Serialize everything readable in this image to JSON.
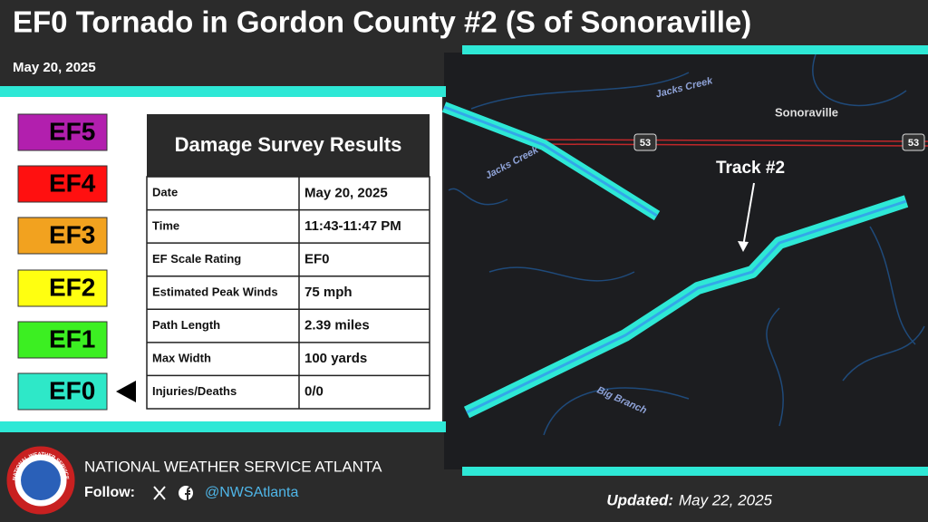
{
  "header": {
    "title": "EF0 Tornado in Gordon County #2 (S of Sonoraville)",
    "date": "May 20, 2025"
  },
  "ef_scale": [
    "EF5",
    "EF4",
    "EF3",
    "EF2",
    "EF1",
    "EF0"
  ],
  "table": {
    "title": "Damage Survey Results",
    "rows": [
      [
        "Date",
        "May 20, 2025"
      ],
      [
        "Time",
        "11:43-11:47 PM"
      ],
      [
        "EF Scale Rating",
        "EF0"
      ],
      [
        "Estimated Peak Winds",
        "75 mph"
      ],
      [
        "Path Length",
        "2.39 miles"
      ],
      [
        "Max Width",
        "100 yards"
      ],
      [
        "Injuries/Deaths",
        "0/0"
      ]
    ]
  },
  "map": {
    "labels": [
      "Jacks Creek",
      "Jacks Creek",
      "Sonoraville",
      "53",
      "53",
      "Track #2",
      "Big Branch"
    ]
  },
  "footer": {
    "logo": "NATIONAL WEATHER SERVICE",
    "office": "NATIONAL WEATHER SERVICE ATLANTA",
    "follow": "Follow:",
    "handle": "@NWSAtlanta",
    "updated_label": "Updated:",
    "updated_date": "May 22, 2025"
  }
}
